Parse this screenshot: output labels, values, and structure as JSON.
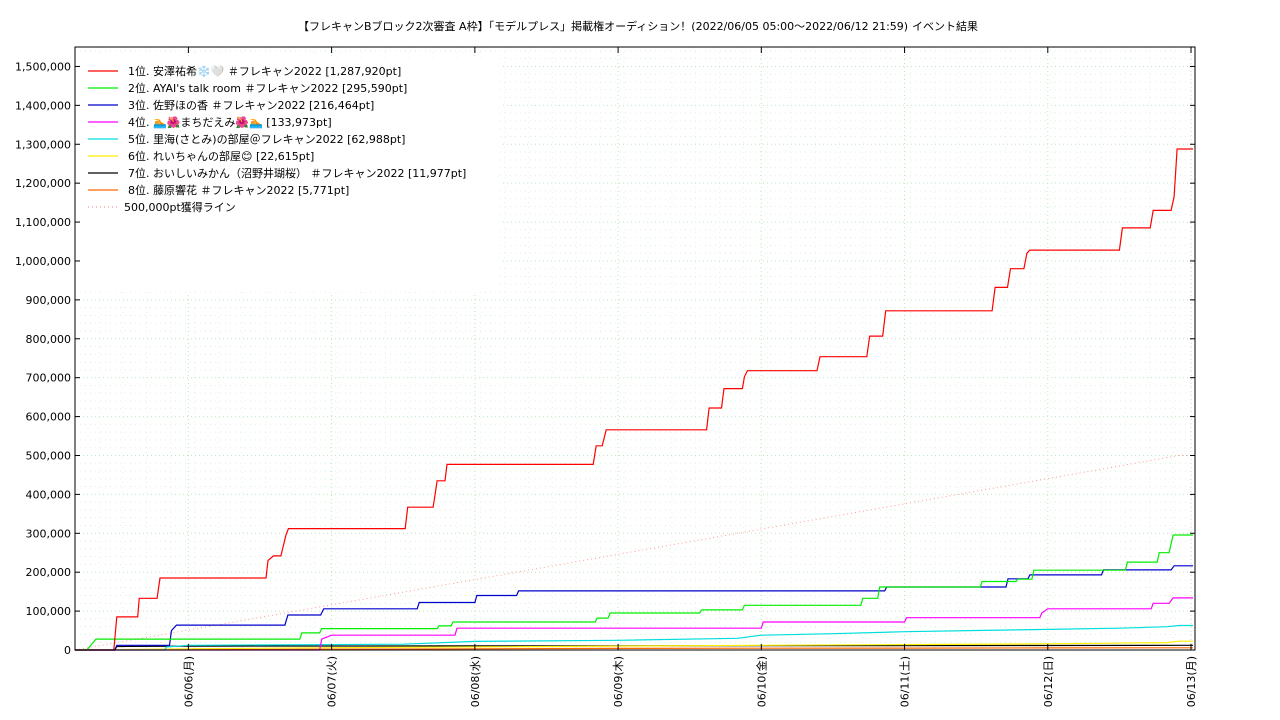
{
  "chart_data": {
    "type": "line",
    "title": "【フレキャンBブロック2次審査 A枠】「モデルプレス」掲載権オーディション！(2022/06/05 05:00〜2022/06/12 21:59)",
    "subtitle": "イベント結果",
    "xlabel": "",
    "ylabel": "",
    "ylim": [
      0,
      1550000
    ],
    "xlim": [
      "2022-06-05 05:00",
      "2022-06-13 00:40"
    ],
    "grid": true,
    "legend_position": "top-left",
    "y_ticks": [
      "0",
      "100,000",
      "200,000",
      "300,000",
      "400,000",
      "500,000",
      "600,000",
      "700,000",
      "800,000",
      "900,000",
      "1,000,000",
      "1,100,000",
      "1,200,000",
      "1,300,000",
      "1,400,000",
      "1,500,000"
    ],
    "x_ticks": [
      {
        "label": "06/06(月)",
        "date": "2022-06-06 00:00"
      },
      {
        "label": "06/07(火)",
        "date": "2022-06-07 00:00"
      },
      {
        "label": "06/08(水)",
        "date": "2022-06-08 00:00"
      },
      {
        "label": "06/09(木)",
        "date": "2022-06-09 00:00"
      },
      {
        "label": "06/10(金)",
        "date": "2022-06-10 00:00"
      },
      {
        "label": "06/11(土)",
        "date": "2022-06-11 00:00"
      },
      {
        "label": "06/12(日)",
        "date": "2022-06-12 00:00"
      },
      {
        "label": "06/13(月)",
        "date": "2022-06-13 00:00"
      }
    ],
    "series": [
      {
        "name": "1位. 安澤祐希❄️🤍 ＃フレキャン2022 [1,287,920pt]",
        "color": "#ff0000",
        "dash": false,
        "points": [
          [
            "2022-06-05 05:00",
            0
          ],
          [
            "2022-06-05 11:30",
            0
          ],
          [
            "2022-06-05 12:00",
            85000
          ],
          [
            "2022-06-05 15:30",
            85000
          ],
          [
            "2022-06-05 15:45",
            133000
          ],
          [
            "2022-06-05 18:45",
            133000
          ],
          [
            "2022-06-05 19:15",
            185000
          ],
          [
            "2022-06-06 13:00",
            185000
          ],
          [
            "2022-06-06 13:20",
            230000
          ],
          [
            "2022-06-06 14:15",
            242000
          ],
          [
            "2022-06-06 15:30",
            242000
          ],
          [
            "2022-06-06 16:20",
            295000
          ],
          [
            "2022-06-06 16:45",
            312000
          ],
          [
            "2022-06-07 12:20",
            312000
          ],
          [
            "2022-06-07 12:45",
            367000
          ],
          [
            "2022-06-07 17:00",
            367000
          ],
          [
            "2022-06-07 17:20",
            400000
          ],
          [
            "2022-06-07 17:40",
            435000
          ],
          [
            "2022-06-07 19:00",
            435000
          ],
          [
            "2022-06-07 19:20",
            477000
          ],
          [
            "2022-06-08 19:50",
            477000
          ],
          [
            "2022-06-08 20:20",
            525000
          ],
          [
            "2022-06-08 21:20",
            525000
          ],
          [
            "2022-06-08 22:00",
            566000
          ],
          [
            "2022-06-09 14:50",
            566000
          ],
          [
            "2022-06-09 15:15",
            622000
          ],
          [
            "2022-06-09 17:20",
            622000
          ],
          [
            "2022-06-09 17:45",
            672000
          ],
          [
            "2022-06-09 20:50",
            672000
          ],
          [
            "2022-06-09 21:10",
            702000
          ],
          [
            "2022-06-09 21:40",
            718000
          ],
          [
            "2022-06-10 09:20",
            718000
          ],
          [
            "2022-06-10 09:50",
            754000
          ],
          [
            "2022-06-10 17:40",
            754000
          ],
          [
            "2022-06-10 18:10",
            807000
          ],
          [
            "2022-06-10 20:20",
            807000
          ],
          [
            "2022-06-10 20:50",
            872000
          ],
          [
            "2022-06-11 14:40",
            872000
          ],
          [
            "2022-06-11 15:10",
            932000
          ],
          [
            "2022-06-11 17:15",
            932000
          ],
          [
            "2022-06-11 17:45",
            980000
          ],
          [
            "2022-06-11 20:00",
            980000
          ],
          [
            "2022-06-11 20:30",
            1020000
          ],
          [
            "2022-06-11 21:00",
            1028000
          ],
          [
            "2022-06-12 12:00",
            1028000
          ],
          [
            "2022-06-12 12:30",
            1085000
          ],
          [
            "2022-06-12 17:10",
            1085000
          ],
          [
            "2022-06-12 17:40",
            1130000
          ],
          [
            "2022-06-12 20:40",
            1130000
          ],
          [
            "2022-06-12 21:10",
            1165000
          ],
          [
            "2022-06-12 21:40",
            1287920
          ],
          [
            "2022-06-13 00:20",
            1287920
          ]
        ]
      },
      {
        "name": "2位. AYAI's talk room ＃フレキャン2022 [295,590pt]",
        "color": "#00ee00",
        "dash": false,
        "points": [
          [
            "2022-06-05 05:00",
            0
          ],
          [
            "2022-06-05 07:00",
            0
          ],
          [
            "2022-06-05 08:30",
            28000
          ],
          [
            "2022-06-06 18:40",
            28000
          ],
          [
            "2022-06-06 19:00",
            44000
          ],
          [
            "2022-06-06 22:00",
            44000
          ],
          [
            "2022-06-06 22:20",
            55000
          ],
          [
            "2022-06-07 17:40",
            55000
          ],
          [
            "2022-06-07 18:00",
            62000
          ],
          [
            "2022-06-07 20:00",
            62000
          ],
          [
            "2022-06-07 20:20",
            72000
          ],
          [
            "2022-06-08 20:10",
            72000
          ],
          [
            "2022-06-08 20:30",
            82000
          ],
          [
            "2022-06-08 22:20",
            82000
          ],
          [
            "2022-06-08 22:40",
            95000
          ],
          [
            "2022-06-09 13:40",
            95000
          ],
          [
            "2022-06-09 14:00",
            103000
          ],
          [
            "2022-06-09 20:50",
            103000
          ],
          [
            "2022-06-09 21:10",
            115000
          ],
          [
            "2022-06-10 16:40",
            115000
          ],
          [
            "2022-06-10 17:00",
            133000
          ],
          [
            "2022-06-10 19:30",
            133000
          ],
          [
            "2022-06-10 19:50",
            162000
          ],
          [
            "2022-06-11 12:40",
            162000
          ],
          [
            "2022-06-11 13:00",
            176000
          ],
          [
            "2022-06-11 18:40",
            176000
          ],
          [
            "2022-06-11 19:00",
            182000
          ],
          [
            "2022-06-11 21:20",
            182000
          ],
          [
            "2022-06-11 21:40",
            205000
          ],
          [
            "2022-06-12 13:00",
            205000
          ],
          [
            "2022-06-12 13:20",
            226000
          ],
          [
            "2022-06-12 18:20",
            226000
          ],
          [
            "2022-06-12 18:40",
            250000
          ],
          [
            "2022-06-12 20:20",
            250000
          ],
          [
            "2022-06-12 21:00",
            295590
          ],
          [
            "2022-06-13 00:20",
            295590
          ]
        ]
      },
      {
        "name": "3位. 佐野ほの香 ＃フレキャン2022 [216,464pt]",
        "color": "#0000cc",
        "dash": false,
        "points": [
          [
            "2022-06-05 05:00",
            0
          ],
          [
            "2022-06-05 11:40",
            0
          ],
          [
            "2022-06-05 12:00",
            12000
          ],
          [
            "2022-06-05 20:50",
            12000
          ],
          [
            "2022-06-05 21:10",
            50000
          ],
          [
            "2022-06-05 22:00",
            64000
          ],
          [
            "2022-06-06 16:10",
            64000
          ],
          [
            "2022-06-06 16:40",
            90000
          ],
          [
            "2022-06-06 22:10",
            90000
          ],
          [
            "2022-06-06 22:40",
            106000
          ],
          [
            "2022-06-07 14:20",
            106000
          ],
          [
            "2022-06-07 14:40",
            122000
          ],
          [
            "2022-06-08 00:00",
            122000
          ],
          [
            "2022-06-08 00:20",
            140000
          ],
          [
            "2022-06-08 07:00",
            140000
          ],
          [
            "2022-06-08 07:20",
            152000
          ],
          [
            "2022-06-10 20:40",
            152000
          ],
          [
            "2022-06-10 21:00",
            162000
          ],
          [
            "2022-06-11 17:00",
            162000
          ],
          [
            "2022-06-11 17:20",
            183000
          ],
          [
            "2022-06-11 20:40",
            183000
          ],
          [
            "2022-06-11 21:00",
            193000
          ],
          [
            "2022-06-12 09:00",
            193000
          ],
          [
            "2022-06-12 09:20",
            206000
          ],
          [
            "2022-06-12 20:40",
            206000
          ],
          [
            "2022-06-12 21:10",
            216464
          ],
          [
            "2022-06-13 00:20",
            216464
          ]
        ]
      },
      {
        "name": "4位. 🏊🌺まちだえみ🌺🏊 [133,973pt]",
        "color": "#ff00ff",
        "dash": false,
        "points": [
          [
            "2022-06-05 05:00",
            0
          ],
          [
            "2022-06-06 22:00",
            0
          ],
          [
            "2022-06-06 22:20",
            28000
          ],
          [
            "2022-06-07 00:00",
            38000
          ],
          [
            "2022-06-07 20:40",
            38000
          ],
          [
            "2022-06-07 21:00",
            56000
          ],
          [
            "2022-06-10 00:00",
            56000
          ],
          [
            "2022-06-10 00:20",
            72000
          ],
          [
            "2022-06-11 00:00",
            72000
          ],
          [
            "2022-06-11 00:20",
            83000
          ],
          [
            "2022-06-11 22:40",
            83000
          ],
          [
            "2022-06-11 23:00",
            95000
          ],
          [
            "2022-06-12 00:00",
            106000
          ],
          [
            "2022-06-12 17:20",
            106000
          ],
          [
            "2022-06-12 17:40",
            120000
          ],
          [
            "2022-06-12 20:20",
            120000
          ],
          [
            "2022-06-12 21:00",
            133973
          ],
          [
            "2022-06-13 00:20",
            133973
          ]
        ]
      },
      {
        "name": "5位. 里海(さとみ)の部屋＠フレキャン2022 [62,988pt]",
        "color": "#00dddd",
        "dash": false,
        "points": [
          [
            "2022-06-05 05:00",
            0
          ],
          [
            "2022-06-05 20:00",
            0
          ],
          [
            "2022-06-05 20:20",
            8000
          ],
          [
            "2022-06-06 00:00",
            12000
          ],
          [
            "2022-06-07 12:00",
            15000
          ],
          [
            "2022-06-08 00:00",
            22000
          ],
          [
            "2022-06-09 00:00",
            25000
          ],
          [
            "2022-06-09 20:00",
            30000
          ],
          [
            "2022-06-10 00:00",
            38000
          ],
          [
            "2022-06-10 12:00",
            42000
          ],
          [
            "2022-06-11 00:00",
            47000
          ],
          [
            "2022-06-11 12:00",
            50000
          ],
          [
            "2022-06-12 00:00",
            53000
          ],
          [
            "2022-06-12 12:00",
            56000
          ],
          [
            "2022-06-12 20:00",
            60000
          ],
          [
            "2022-06-12 21:59",
            62988
          ],
          [
            "2022-06-13 00:20",
            62988
          ]
        ]
      },
      {
        "name": "6位. れいちゃんの部屋😊 [22,615pt]",
        "color": "#ffee00",
        "dash": false,
        "points": [
          [
            "2022-06-05 05:00",
            0
          ],
          [
            "2022-06-06 00:00",
            3000
          ],
          [
            "2022-06-07 00:00",
            6000
          ],
          [
            "2022-06-08 00:00",
            8000
          ],
          [
            "2022-06-09 00:00",
            10000
          ],
          [
            "2022-06-10 00:00",
            12000
          ],
          [
            "2022-06-11 00:00",
            14000
          ],
          [
            "2022-06-12 00:00",
            16000
          ],
          [
            "2022-06-12 20:00",
            19000
          ],
          [
            "2022-06-12 21:59",
            22615
          ],
          [
            "2022-06-13 00:20",
            22615
          ]
        ]
      },
      {
        "name": "7位. おいしいみかん（沼野井瑚桜） ＃フレキャン2022 [11,977pt]",
        "color": "#000000",
        "dash": false,
        "points": [
          [
            "2022-06-05 05:00",
            0
          ],
          [
            "2022-06-05 11:40",
            0
          ],
          [
            "2022-06-05 12:00",
            9000
          ],
          [
            "2022-06-06 00:00",
            10000
          ],
          [
            "2022-06-08 00:00",
            10500
          ],
          [
            "2022-06-10 00:00",
            11000
          ],
          [
            "2022-06-12 00:00",
            11500
          ],
          [
            "2022-06-12 21:59",
            11977
          ],
          [
            "2022-06-13 00:20",
            11977
          ]
        ]
      },
      {
        "name": "8位. 藤原響花 ＃フレキャン2022 [5,771pt]",
        "color": "#ff6600",
        "dash": false,
        "points": [
          [
            "2022-06-05 05:00",
            0
          ],
          [
            "2022-06-06 00:00",
            1000
          ],
          [
            "2022-06-07 00:00",
            2000
          ],
          [
            "2022-06-08 00:00",
            3000
          ],
          [
            "2022-06-09 00:00",
            4000
          ],
          [
            "2022-06-10 00:00",
            4500
          ],
          [
            "2022-06-11 00:00",
            5000
          ],
          [
            "2022-06-12 00:00",
            5400
          ],
          [
            "2022-06-12 21:59",
            5771
          ],
          [
            "2022-06-13 00:20",
            5771
          ]
        ]
      },
      {
        "name": "500,000pt獲得ライン",
        "color": "#ff9999",
        "dash": true,
        "points": [
          [
            "2022-06-05 05:00",
            0
          ],
          [
            "2022-06-12 21:59",
            500000
          ],
          [
            "2022-06-13 00:20",
            500000
          ]
        ]
      }
    ]
  }
}
